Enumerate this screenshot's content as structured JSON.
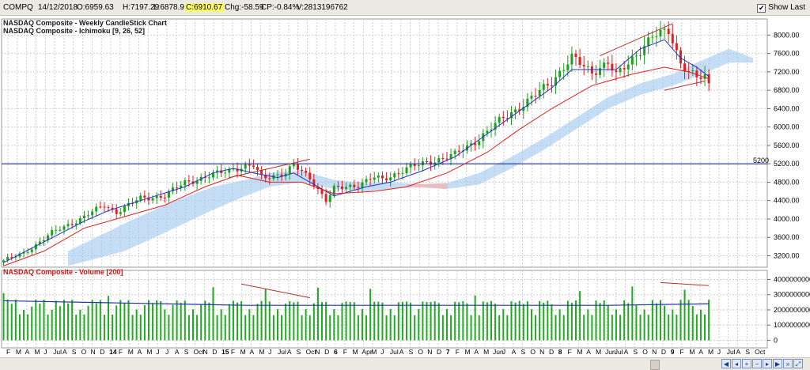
{
  "header": {
    "symbol": "COMPQ",
    "date": "14/12/2018",
    "open": "O:6959.63",
    "high": "H:7197.29",
    "low": "L:6878.99",
    "close": "C:6910.67",
    "change": "Chg:-58.59",
    "change_pct": "CP:-0.84%",
    "volume": "V:2813196762",
    "show_last_label": "Show Last",
    "show_last_checked": true
  },
  "price_panel": {
    "title1": "NASDAQ Composite - Weekly CandleStick Chart",
    "title2": "NASDAQ Composite - Ichimoku [9, 26, 52]",
    "hline_label": "5200",
    "hline_color": "#1f2d8a"
  },
  "volume_panel": {
    "title": "NASDAQ Composite - Volume [200]"
  },
  "x_axis_labels": [
    "F",
    "M",
    "A",
    "M",
    "J",
    "Jul",
    "A",
    "S",
    "O",
    "N",
    "D",
    "14",
    "F",
    "M",
    "A",
    "M",
    "J",
    "J",
    "A",
    "S",
    "Oct",
    "N",
    "D",
    "15",
    "F",
    "M",
    "A",
    "M",
    "J",
    "Jul",
    "A",
    "S",
    "Oct",
    "N",
    "D",
    "6",
    "F",
    "M",
    "Apr",
    "M",
    "J",
    "Jul",
    "A",
    "S",
    "O",
    "N",
    "D",
    "7",
    "F",
    "M",
    "A",
    "M",
    "Jun",
    "J",
    "A",
    "S",
    "O",
    "N",
    "D",
    "8",
    "F",
    "M",
    "A",
    "M",
    "Jun",
    "Jul",
    "A",
    "S",
    "O",
    "N",
    "D",
    "9",
    "F",
    "M",
    "A",
    "M",
    "J",
    "Jul",
    "A",
    "S",
    "Oct"
  ],
  "colors": {
    "up": "#20a020",
    "down": "#e02020",
    "tenkan": "#2233cc",
    "kijun": "#e02020",
    "cloud": "#9fc6ee",
    "cloud_red": "#f3b0b0",
    "volume_bar": "#22aa22",
    "volume_ma": "#2233aa",
    "trendline": "#b03030"
  },
  "chart_data": [
    {
      "type": "candlestick",
      "title": "NASDAQ Composite - Weekly CandleStick Chart",
      "ylim": [
        2950,
        8350
      ],
      "yticks": [
        3200,
        3600,
        4000,
        4400,
        4800,
        5200,
        5600,
        6000,
        6400,
        6800,
        7200,
        7600,
        8000
      ],
      "grid": true,
      "horizontal_line": 5200,
      "path": [
        [
          0,
          3100
        ],
        [
          5,
          3250
        ],
        [
          12,
          3700
        ],
        [
          19,
          4000
        ],
        [
          25,
          4300
        ],
        [
          28,
          4150
        ],
        [
          34,
          4450
        ],
        [
          40,
          4500
        ],
        [
          45,
          4800
        ],
        [
          50,
          4900
        ],
        [
          57,
          5100
        ],
        [
          62,
          5150
        ],
        [
          64,
          4900
        ],
        [
          70,
          5000
        ],
        [
          72,
          5150
        ],
        [
          76,
          4900
        ],
        [
          80,
          4400
        ],
        [
          82,
          4650
        ],
        [
          88,
          4750
        ],
        [
          92,
          4900
        ],
        [
          94,
          4850
        ],
        [
          100,
          5100
        ],
        [
          106,
          5250
        ],
        [
          112,
          5400
        ],
        [
          118,
          5750
        ],
        [
          124,
          6200
        ],
        [
          130,
          6550
        ],
        [
          136,
          7000
        ],
        [
          141,
          7500
        ],
        [
          146,
          7200
        ],
        [
          150,
          7400
        ],
        [
          152,
          7100
        ],
        [
          156,
          7500
        ],
        [
          161,
          7950
        ],
        [
          165,
          8100
        ],
        [
          166,
          7900
        ],
        [
          168,
          7400
        ],
        [
          170,
          7200
        ],
        [
          172,
          7050
        ],
        [
          174,
          7100
        ],
        [
          175,
          6910
        ]
      ],
      "tenkan": [
        [
          0,
          3050
        ],
        [
          10,
          3500
        ],
        [
          20,
          3950
        ],
        [
          26,
          4180
        ],
        [
          34,
          4400
        ],
        [
          45,
          4700
        ],
        [
          52,
          5000
        ],
        [
          57,
          5100
        ],
        [
          62,
          5000
        ],
        [
          68,
          4900
        ],
        [
          72,
          5000
        ],
        [
          78,
          4700
        ],
        [
          82,
          4500
        ],
        [
          90,
          4700
        ],
        [
          96,
          4800
        ],
        [
          104,
          5050
        ],
        [
          112,
          5350
        ],
        [
          120,
          5850
        ],
        [
          128,
          6350
        ],
        [
          136,
          6850
        ],
        [
          141,
          7250
        ],
        [
          146,
          7250
        ],
        [
          152,
          7250
        ],
        [
          158,
          7700
        ],
        [
          164,
          7900
        ],
        [
          168,
          7500
        ],
        [
          172,
          7300
        ],
        [
          175,
          7100
        ]
      ],
      "kijun": [
        [
          0,
          2980
        ],
        [
          10,
          3300
        ],
        [
          20,
          3800
        ],
        [
          30,
          4050
        ],
        [
          40,
          4300
        ],
        [
          50,
          4700
        ],
        [
          58,
          4950
        ],
        [
          66,
          4800
        ],
        [
          74,
          4800
        ],
        [
          82,
          4550
        ],
        [
          92,
          4600
        ],
        [
          100,
          4700
        ],
        [
          110,
          5000
        ],
        [
          120,
          5450
        ],
        [
          128,
          5950
        ],
        [
          136,
          6400
        ],
        [
          146,
          6900
        ],
        [
          156,
          7150
        ],
        [
          164,
          7300
        ],
        [
          170,
          7200
        ],
        [
          175,
          7050
        ]
      ],
      "cloud_top": [
        [
          16,
          3300
        ],
        [
          30,
          3900
        ],
        [
          40,
          4300
        ],
        [
          52,
          4700
        ],
        [
          60,
          4850
        ],
        [
          66,
          5000
        ],
        [
          74,
          5050
        ],
        [
          82,
          4850
        ],
        [
          90,
          4780
        ],
        [
          96,
          4800
        ],
        [
          104,
          4750
        ],
        [
          110,
          4780
        ],
        [
          118,
          5000
        ],
        [
          126,
          5350
        ],
        [
          134,
          5750
        ],
        [
          142,
          6200
        ],
        [
          150,
          6650
        ],
        [
          158,
          6950
        ],
        [
          166,
          7150
        ],
        [
          172,
          7400
        ],
        [
          180,
          7700
        ],
        [
          186,
          7500
        ]
      ],
      "cloud_bottom": [
        [
          16,
          2980
        ],
        [
          30,
          3300
        ],
        [
          40,
          3700
        ],
        [
          52,
          4200
        ],
        [
          60,
          4500
        ],
        [
          66,
          4700
        ],
        [
          74,
          4800
        ],
        [
          82,
          4650
        ],
        [
          90,
          4600
        ],
        [
          96,
          4650
        ],
        [
          104,
          4700
        ],
        [
          110,
          4650
        ],
        [
          118,
          4750
        ],
        [
          126,
          5100
        ],
        [
          134,
          5500
        ],
        [
          142,
          5950
        ],
        [
          150,
          6400
        ],
        [
          158,
          6700
        ],
        [
          166,
          6900
        ],
        [
          172,
          7100
        ],
        [
          180,
          7400
        ],
        [
          186,
          7400
        ]
      ],
      "trendlines": [
        [
          [
            56,
            4900
          ],
          [
            76,
            5300
          ]
        ],
        [
          [
            148,
            7550
          ],
          [
            166,
            8250
          ]
        ],
        [
          [
            164,
            6800
          ],
          [
            174,
            7000
          ]
        ]
      ]
    },
    {
      "type": "bar",
      "title": "NASDAQ Composite - Volume [200]",
      "ylim": [
        -500000000,
        4600000000
      ],
      "yticks": [
        0,
        1000000000,
        2000000000,
        3000000000,
        4000000000
      ],
      "tick_labels": [
        "0",
        "1000000000",
        "2000000000",
        "3000000000",
        "4000000000"
      ],
      "moving_average_period": 200,
      "ma": [
        [
          0,
          2600000000
        ],
        [
          30,
          2450000000
        ],
        [
          60,
          2300000000
        ],
        [
          100,
          2300000000
        ],
        [
          150,
          2300000000
        ],
        [
          175,
          2400000000
        ]
      ],
      "trendlines": [
        [
          [
            59,
            3700000000
          ],
          [
            76,
            2800000000
          ]
        ],
        [
          [
            163,
            3800000000
          ],
          [
            175,
            3600000000
          ]
        ]
      ]
    }
  ]
}
